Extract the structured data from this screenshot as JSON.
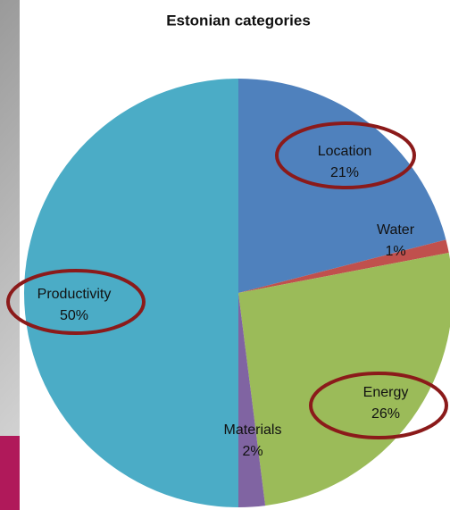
{
  "chart_data": {
    "type": "pie",
    "title": "Estonian categories",
    "categories": [
      "Location",
      "Water",
      "Energy",
      "Materials",
      "Productivity"
    ],
    "values": [
      21,
      1,
      26,
      2,
      50
    ],
    "value_labels": [
      "21%",
      "1%",
      "26%",
      "2%",
      "50%"
    ],
    "colors": [
      "#4f81bd",
      "#c0504d",
      "#9bbb59",
      "#8064a2",
      "#4bacc6"
    ]
  }
}
